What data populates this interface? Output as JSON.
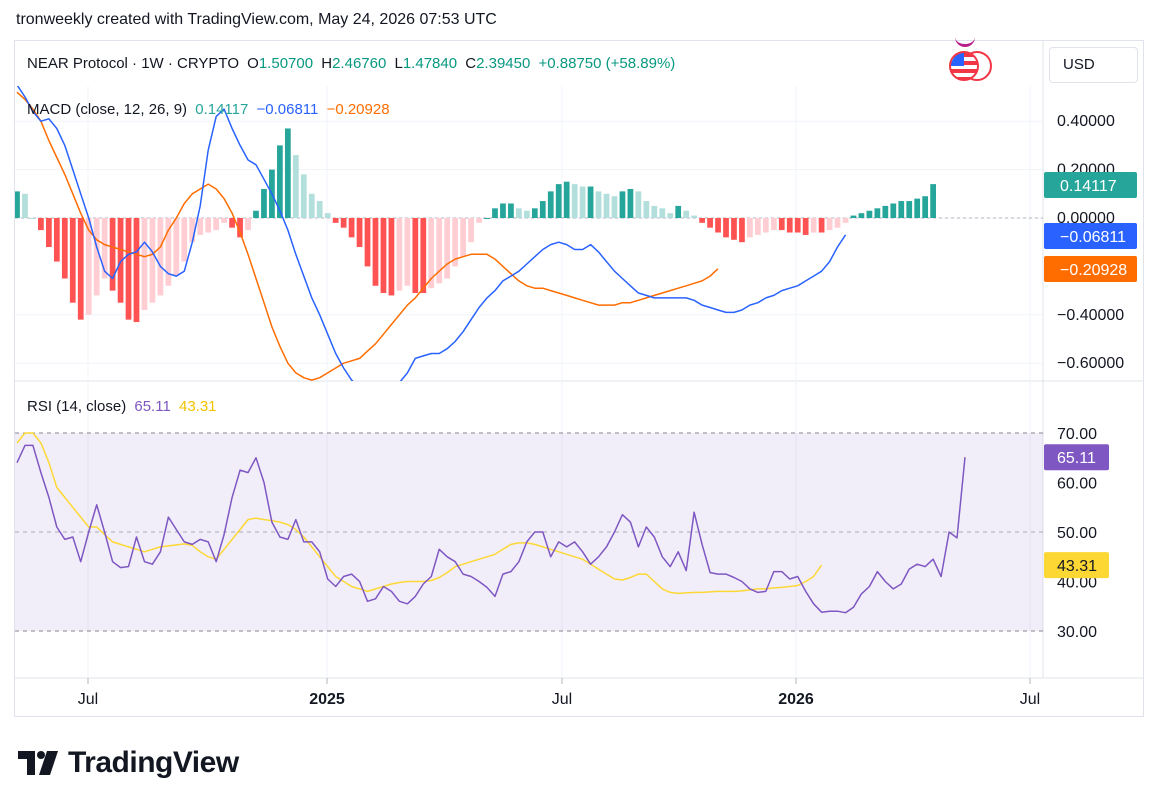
{
  "header": {
    "title": "tronweekly created with TradingView.com, May 24, 2026 07:53 UTC"
  },
  "symbol": {
    "name": "NEAR Protocol · 1W · CRYPTO",
    "o_label": "O",
    "o": "1.50700",
    "h_label": "H",
    "h": "2.46760",
    "l_label": "L",
    "l": "1.47840",
    "c_label": "C",
    "c": "2.39450",
    "change": "+0.88750 (+58.89%)",
    "currency": "USD"
  },
  "macd_legend": {
    "label": "MACD (close, 12, 26, 9)",
    "hist": "0.14117",
    "macd": "−0.06811",
    "signal": "−0.20928"
  },
  "rsi_legend": {
    "label": "RSI (14, close)",
    "rsi": "65.11",
    "ma": "43.31"
  },
  "x_axis": {
    "labels": [
      "Jul",
      "2025",
      "Jul",
      "2026",
      "Jul"
    ]
  },
  "brand": {
    "name": "TradingView"
  },
  "colors": {
    "macd_line": "#2962ff",
    "signal_line": "#ff6d00",
    "hist_pos_strong": "#26a69a",
    "hist_pos_weak": "#b2dfdb",
    "hist_neg_strong": "#ff5252",
    "hist_neg_weak": "#ffcdd2",
    "rsi_line": "#7e57c2",
    "rsi_ma": "#fdd835",
    "rsi_band": "#7e57c2"
  },
  "chart_data": [
    {
      "type": "bar+line",
      "title": "MACD (close, 12, 26, 9)",
      "ylim": [
        -0.7,
        0.48
      ],
      "y_ticks": [
        "0.40000",
        "0.20000",
        "0.00000",
        "−0.40000",
        "−0.60000"
      ],
      "y_tick_values": [
        0.4,
        0.2,
        0.0,
        -0.4,
        -0.6
      ],
      "current_labels": {
        "hist": "0.14117",
        "macd": "−0.06811",
        "signal": "−0.20928"
      },
      "x_start": "2024-04-08",
      "series": [
        {
          "name": "Histogram",
          "values": [
            0.11,
            0.1,
            0.0,
            -0.05,
            -0.12,
            -0.18,
            -0.25,
            -0.35,
            -0.42,
            -0.4,
            -0.32,
            -0.25,
            -0.3,
            -0.35,
            -0.42,
            -0.43,
            -0.38,
            -0.35,
            -0.32,
            -0.28,
            -0.24,
            -0.18,
            -0.1,
            -0.07,
            -0.06,
            -0.05,
            -0.02,
            -0.04,
            -0.08,
            -0.05,
            0.03,
            0.12,
            0.2,
            0.3,
            0.37,
            0.26,
            0.18,
            0.1,
            0.07,
            0.02,
            -0.02,
            -0.04,
            -0.08,
            -0.12,
            -0.2,
            -0.28,
            -0.31,
            -0.32,
            -0.3,
            -0.28,
            -0.31,
            -0.31,
            -0.29,
            -0.27,
            -0.25,
            -0.2,
            -0.16,
            -0.1,
            -0.02,
            0.0,
            0.04,
            0.06,
            0.06,
            0.04,
            0.03,
            0.04,
            0.07,
            0.11,
            0.14,
            0.15,
            0.14,
            0.13,
            0.13,
            0.11,
            0.1,
            0.09,
            0.11,
            0.12,
            0.11,
            0.07,
            0.05,
            0.04,
            0.02,
            0.05,
            0.03,
            0.01,
            -0.02,
            -0.04,
            -0.06,
            -0.08,
            -0.09,
            -0.1,
            -0.08,
            -0.07,
            -0.06,
            -0.05,
            -0.05,
            -0.06,
            -0.06,
            -0.07,
            -0.06,
            -0.06,
            -0.05,
            -0.04,
            -0.02,
            0.01,
            0.02,
            0.03,
            0.04,
            0.05,
            0.06,
            0.07,
            0.07,
            0.08,
            0.09,
            0.14
          ]
        },
        {
          "name": "MACD",
          "values": [
            0.55,
            0.5,
            0.44,
            0.4,
            0.41,
            0.37,
            0.3,
            0.2,
            0.1,
            0.0,
            -0.12,
            -0.22,
            -0.25,
            -0.18,
            -0.15,
            -0.14,
            -0.1,
            -0.14,
            -0.2,
            -0.23,
            -0.24,
            -0.22,
            -0.1,
            0.05,
            0.28,
            0.42,
            0.45,
            0.37,
            0.3,
            0.24,
            0.22,
            0.16,
            0.1,
            0.03,
            -0.05,
            -0.15,
            -0.24,
            -0.33,
            -0.4,
            -0.48,
            -0.56,
            -0.62,
            -0.67,
            -0.7,
            -0.72,
            -0.74,
            -0.76,
            -0.72,
            -0.68,
            -0.64,
            -0.58,
            -0.57,
            -0.56,
            -0.56,
            -0.54,
            -0.51,
            -0.47,
            -0.42,
            -0.37,
            -0.33,
            -0.3,
            -0.26,
            -0.24,
            -0.22,
            -0.19,
            -0.16,
            -0.13,
            -0.11,
            -0.1,
            -0.11,
            -0.13,
            -0.13,
            -0.11,
            -0.14,
            -0.18,
            -0.22,
            -0.25,
            -0.28,
            -0.31,
            -0.32,
            -0.33,
            -0.33,
            -0.33,
            -0.33,
            -0.33,
            -0.34,
            -0.36,
            -0.37,
            -0.38,
            -0.39,
            -0.39,
            -0.38,
            -0.36,
            -0.35,
            -0.33,
            -0.32,
            -0.3,
            -0.29,
            -0.28,
            -0.26,
            -0.24,
            -0.22,
            -0.18,
            -0.12,
            -0.07
          ]
        },
        {
          "name": "Signal",
          "values": [
            0.52,
            0.49,
            0.45,
            0.4,
            0.32,
            0.25,
            0.18,
            0.1,
            0.02,
            -0.05,
            -0.09,
            -0.11,
            -0.12,
            -0.13,
            -0.14,
            -0.15,
            -0.16,
            -0.15,
            -0.12,
            -0.05,
            0.0,
            0.06,
            0.1,
            0.12,
            0.14,
            0.12,
            0.08,
            0.02,
            -0.06,
            -0.15,
            -0.25,
            -0.35,
            -0.45,
            -0.53,
            -0.6,
            -0.64,
            -0.66,
            -0.67,
            -0.66,
            -0.64,
            -0.62,
            -0.6,
            -0.59,
            -0.58,
            -0.55,
            -0.52,
            -0.48,
            -0.44,
            -0.4,
            -0.36,
            -0.33,
            -0.29,
            -0.25,
            -0.22,
            -0.19,
            -0.17,
            -0.16,
            -0.15,
            -0.15,
            -0.15,
            -0.17,
            -0.2,
            -0.23,
            -0.26,
            -0.28,
            -0.29,
            -0.29,
            -0.3,
            -0.31,
            -0.32,
            -0.33,
            -0.34,
            -0.35,
            -0.36,
            -0.36,
            -0.36,
            -0.35,
            -0.35,
            -0.34,
            -0.33,
            -0.32,
            -0.31,
            -0.3,
            -0.29,
            -0.28,
            -0.27,
            -0.26,
            -0.24,
            -0.21
          ]
        }
      ]
    },
    {
      "type": "line",
      "title": "RSI (14, close)",
      "ylim": [
        20,
        72
      ],
      "y_ticks": [
        "70.00",
        "60.00",
        "50.00",
        "40.00",
        "30.00"
      ],
      "y_tick_values": [
        70,
        60,
        50,
        40,
        30
      ],
      "band": [
        30,
        70
      ],
      "mid_line": 50,
      "current_labels": {
        "rsi": "65.11",
        "ma": "43.31"
      },
      "series": [
        {
          "name": "RSI",
          "values": [
            64,
            67.5,
            67.5,
            62,
            57,
            51,
            48.5,
            49,
            44,
            50,
            55.5,
            50,
            44,
            42.8,
            43,
            49,
            44,
            43.5,
            46,
            53,
            50.5,
            48,
            47.5,
            48.5,
            48,
            44,
            49.5,
            57,
            62.5,
            62,
            65,
            60,
            52,
            49,
            48.5,
            52.5,
            48,
            48,
            46,
            40.5,
            39,
            41,
            41.5,
            40,
            36,
            36.5,
            39,
            38,
            36,
            35.5,
            37,
            39.5,
            41,
            46.5,
            45,
            44,
            41.5,
            41,
            40,
            38.8,
            37,
            41.5,
            42,
            44,
            48,
            50,
            50,
            45,
            48,
            47,
            48,
            46,
            43.5,
            45,
            47,
            50,
            53.5,
            52,
            47,
            51,
            49,
            45,
            43,
            46,
            42.2,
            54,
            47.5,
            41.8,
            41.5,
            41.5,
            40.8,
            40,
            38.5,
            37.8,
            38,
            42,
            42,
            40.5,
            41,
            38,
            35.5,
            33.8,
            34,
            34,
            33.7,
            34.8,
            37.5,
            39,
            42,
            40,
            38.5,
            39.5,
            42.5,
            43.5,
            43,
            44.5,
            41,
            50,
            48.8,
            65.11
          ]
        },
        {
          "name": "RSI-based MA",
          "values": [
            68,
            70,
            70,
            68,
            64,
            59,
            57,
            55,
            53,
            51,
            51,
            49.5,
            48,
            47.5,
            47,
            46.5,
            46,
            46.5,
            47,
            47.2,
            47.4,
            47.6,
            47.3,
            46,
            45,
            44.5,
            46.5,
            48.5,
            50.5,
            52.5,
            52.8,
            52.5,
            52.3,
            52,
            51.5,
            50.5,
            49,
            47,
            45,
            43,
            41,
            40,
            39,
            38.5,
            38,
            38.5,
            39,
            39.5,
            39.8,
            40,
            40,
            40,
            40.2,
            40.8,
            41.8,
            43,
            43.5,
            44,
            44.5,
            45,
            45.5,
            46.5,
            47.5,
            47.8,
            47.8,
            47.5,
            47,
            46.5,
            46,
            45.5,
            45,
            44.5,
            43.5,
            42.5,
            41.5,
            40.5,
            40.3,
            40.8,
            41.5,
            41.5,
            40,
            38.5,
            37.8,
            37.6,
            37.7,
            37.8,
            37.8,
            37.9,
            38,
            38,
            38,
            38.1,
            38.3,
            38.5,
            38.5,
            38.7,
            38.8,
            39,
            39.2,
            40,
            41,
            43.31
          ]
        }
      ]
    }
  ]
}
